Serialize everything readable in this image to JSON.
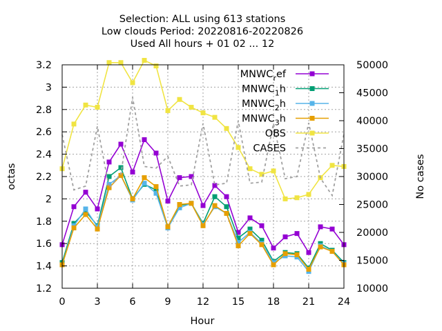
{
  "chart_data": {
    "type": "line",
    "title_lines": [
      "Selection: ALL using   613 stations",
      "Low clouds   Period: 20220816-20220826",
      "Used  All hours + 01 02 ... 12"
    ],
    "xlabel": "Hour",
    "ylabel": "octas",
    "y2label": "No cases",
    "xlim": [
      0,
      24
    ],
    "ylim": [
      1.2,
      3.2
    ],
    "y2lim": [
      10000,
      50000
    ],
    "xticks": [
      "0",
      "3",
      "6",
      "9",
      "12",
      "15",
      "18",
      "21",
      "24"
    ],
    "yticks": [
      "1.2",
      "1.4",
      "1.6",
      "1.8",
      "2",
      "2.2",
      "2.4",
      "2.6",
      "2.8",
      "3",
      "3.2"
    ],
    "y2ticks": [
      "10000",
      "15000",
      "20000",
      "25000",
      "30000",
      "35000",
      "40000",
      "45000",
      "50000"
    ],
    "grid": true,
    "legend_position": "top-right",
    "x": [
      0,
      1,
      2,
      3,
      4,
      5,
      6,
      7,
      8,
      9,
      10,
      11,
      12,
      13,
      14,
      15,
      16,
      17,
      18,
      19,
      20,
      21,
      22,
      23,
      24
    ],
    "series": [
      {
        "name_main": "MNWC",
        "name_sub": "r",
        "name_rest": "ef",
        "axis": "y1",
        "color": "#9400d3",
        "marker": "square",
        "dash": false,
        "values": [
          1.59,
          1.93,
          2.06,
          1.91,
          2.33,
          2.49,
          2.24,
          2.53,
          2.41,
          1.98,
          2.19,
          2.2,
          1.94,
          2.12,
          2.02,
          1.7,
          1.83,
          1.76,
          1.56,
          1.66,
          1.69,
          1.52,
          1.75,
          1.73,
          1.59
        ]
      },
      {
        "name_main": "MNWC",
        "name_sub": "1",
        "name_rest": "h",
        "axis": "y1",
        "color": "#009e73",
        "marker": "square",
        "dash": false,
        "values": [
          1.43,
          1.78,
          1.89,
          1.76,
          2.2,
          2.28,
          2.0,
          2.13,
          2.08,
          1.75,
          1.94,
          1.96,
          1.78,
          2.02,
          1.93,
          1.65,
          1.73,
          1.63,
          1.44,
          1.52,
          1.51,
          1.38,
          1.6,
          1.54,
          1.43
        ]
      },
      {
        "name_main": "MNWC",
        "name_sub": "2",
        "name_rest": "h",
        "axis": "y1",
        "color": "#56b4e9",
        "marker": "square",
        "dash": false,
        "values": [
          1.41,
          1.76,
          1.91,
          1.75,
          2.13,
          2.21,
          1.99,
          2.14,
          2.05,
          1.74,
          1.92,
          1.96,
          1.77,
          1.93,
          1.87,
          1.61,
          1.7,
          1.6,
          1.43,
          1.49,
          1.48,
          1.35,
          1.58,
          1.53,
          1.42
        ]
      },
      {
        "name_main": "MNWC",
        "name_sub": "3",
        "name_rest": "h",
        "axis": "y1",
        "color": "#e69f00",
        "marker": "square",
        "dash": false,
        "values": [
          1.41,
          1.74,
          1.86,
          1.73,
          2.1,
          2.21,
          2.0,
          2.19,
          2.11,
          1.75,
          1.95,
          1.96,
          1.76,
          1.94,
          1.87,
          1.58,
          1.69,
          1.59,
          1.41,
          1.51,
          1.5,
          1.37,
          1.57,
          1.53,
          1.41
        ]
      },
      {
        "name_main": "OBS",
        "name_sub": "",
        "name_rest": "",
        "axis": "y1",
        "color": "#f0e442",
        "marker": "square",
        "dash": false,
        "values": [
          2.27,
          2.67,
          2.84,
          2.82,
          3.22,
          3.22,
          3.04,
          3.24,
          3.19,
          2.79,
          2.89,
          2.82,
          2.77,
          2.73,
          2.63,
          2.46,
          2.27,
          2.22,
          2.25,
          2.0,
          2.01,
          2.04,
          2.19,
          2.3,
          2.29
        ]
      },
      {
        "name_main": "CASES",
        "name_sub": "",
        "name_rest": "",
        "axis": "y2",
        "color": "#a0a0a0",
        "marker": "none",
        "dash": true,
        "values": [
          37500,
          27600,
          28300,
          39000,
          28000,
          30400,
          44200,
          31800,
          31500,
          33600,
          28300,
          28500,
          39500,
          28500,
          28800,
          40000,
          28800,
          29000,
          39500,
          29600,
          30000,
          39600,
          29700,
          26600,
          37600
        ]
      }
    ]
  }
}
